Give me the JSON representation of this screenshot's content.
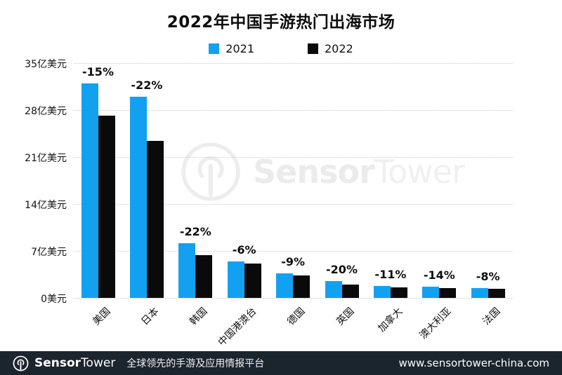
{
  "title": "2022年中国手游热门出海市场",
  "legend": [
    {
      "label": "2021",
      "color": "#12A1F0"
    },
    {
      "label": "2022",
      "color": "#0a0a0a"
    }
  ],
  "chart_data": {
    "type": "bar",
    "title": "2022年中国手游热门出海市场",
    "unit": "亿美元",
    "categories": [
      "美国",
      "日本",
      "韩国",
      "中国港澳台",
      "德国",
      "英国",
      "加拿大",
      "澳大利亚",
      "法国"
    ],
    "series": [
      {
        "name": "2021",
        "color": "#12A1F0",
        "values": [
          32.0,
          30.0,
          8.2,
          5.4,
          3.7,
          2.5,
          1.8,
          1.7,
          1.5
        ]
      },
      {
        "name": "2022",
        "color": "#0a0a0a",
        "values": [
          27.2,
          23.4,
          6.4,
          5.1,
          3.4,
          2.0,
          1.6,
          1.5,
          1.4
        ]
      }
    ],
    "pct_labels": [
      "-15%",
      "-22%",
      "-22%",
      "-6%",
      "-9%",
      "-20%",
      "-11%",
      "-14%",
      "-8%"
    ],
    "y_ticks": [
      {
        "value": 35,
        "label": "35亿美元"
      },
      {
        "value": 28,
        "label": "28亿美元"
      },
      {
        "value": 21,
        "label": "21亿美元"
      },
      {
        "value": 14,
        "label": "14亿美元"
      },
      {
        "value": 7,
        "label": "7亿美元"
      },
      {
        "value": 0,
        "label": "0美元"
      }
    ],
    "ylim": [
      0,
      35
    ],
    "grid": "horizontal-dotted",
    "legend_position": "top-center"
  },
  "watermark": {
    "brand_bold": "Sensor",
    "brand_light": "Tower"
  },
  "footer": {
    "brand_bold": "Sensor",
    "brand_light": "Tower",
    "tagline": "全球领先的手游及应用情报平台",
    "url": "www.sensortower-china.com",
    "bg_color": "#1b252e"
  }
}
